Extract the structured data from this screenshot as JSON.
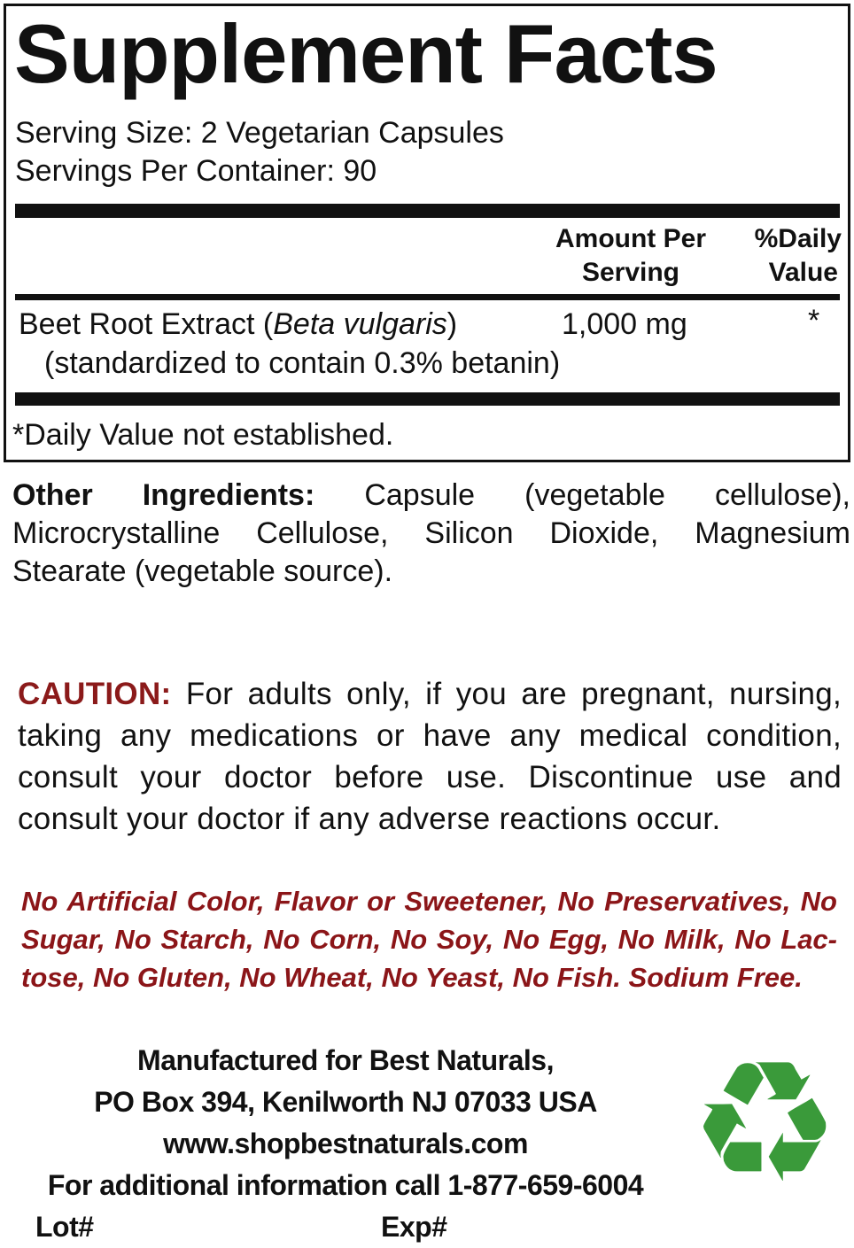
{
  "facts": {
    "title": "Supplement Facts",
    "serving_size": "Serving Size: 2 Vegetarian Capsules",
    "servings_per_container": "Servings Per Container: 90",
    "header": {
      "amount_line1": "Amount Per",
      "amount_line2": "Serving",
      "dv_line1": "%Daily",
      "dv_line2": "Value"
    },
    "ingredient": {
      "name": "Beet Root Extract (",
      "latin": "Beta vulgaris",
      "close": ")",
      "detail": "(standardized to contain 0.3% betanin)",
      "amount": "1,000 mg",
      "dv": "*"
    },
    "footnote": "*Daily Value not established."
  },
  "other_ingredients": {
    "label": "Other Ingredients:",
    "lines": [
      "Capsule (vegetable cellulose),",
      "Microcrystalline Cellulose, Silicon Dioxide, Magnesium",
      "Stearate (vegetable source)."
    ]
  },
  "caution": {
    "label": "CAUTION:",
    "lines": [
      "For adults only, if you are pregnant, nursing,",
      "taking any medications or have any medical condition,",
      "consult your doctor before use. Discontinue use and",
      "consult your doctor if any adverse reactions occur."
    ],
    "color": "#8b1a1a"
  },
  "claims": {
    "lines": [
      "No Artificial Color, Flavor or Sweetener, No Preservatives, No",
      "Sugar, No Starch, No Corn, No Soy, No Egg, No Milk, No Lac-",
      "tose, No Gluten, No Wheat, No Yeast, No Fish. Sodium Free."
    ],
    "color": "#8b1518"
  },
  "manufacturer": {
    "lines": [
      "Manufactured for Best Naturals,",
      "PO Box 394, Kenilworth NJ 07033 USA",
      "www.shopbestnaturals.com",
      "For additional information call 1-877-659-6004"
    ],
    "lot_label": "Lot#",
    "exp_label": "Exp#"
  },
  "icons": {
    "recycle": "recycle-icon",
    "recycle_color": "#3a9a3a"
  }
}
